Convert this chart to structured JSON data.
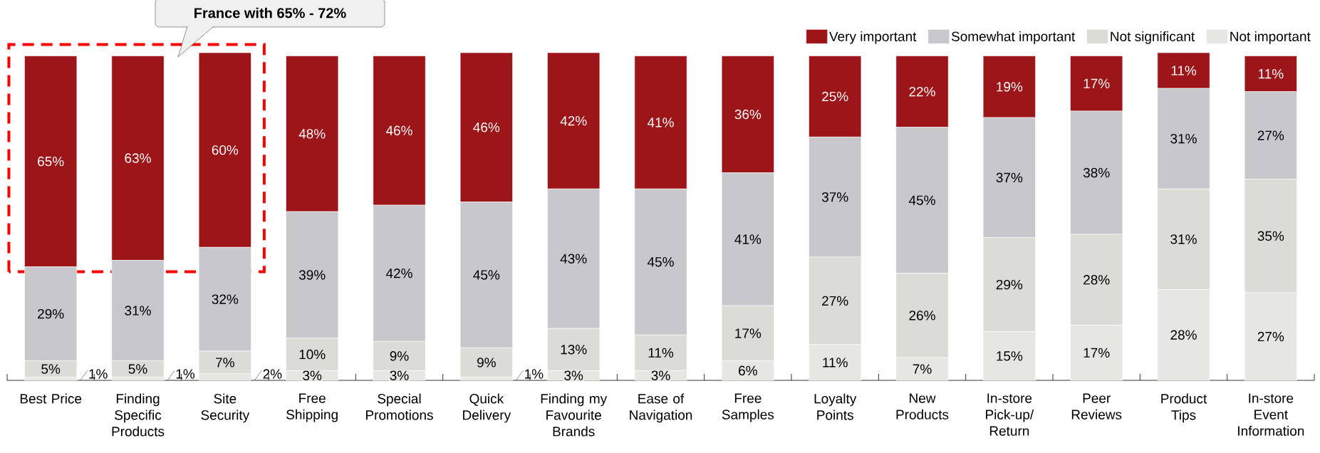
{
  "chart_data": {
    "type": "bar",
    "stacked": true,
    "legend": "top right",
    "categories": [
      "Best Price",
      "Finding Specific Products",
      "Site Security",
      "Free Shipping",
      "Special Promotions",
      "Quick Delivery",
      "Finding my Favourite Brands",
      "Ease of Navigation",
      "Free Samples",
      "Loyalty Points",
      "New Products",
      "In-store Pick-up/ Return",
      "Peer Reviews",
      "Product Tips",
      "In-store Event Information"
    ],
    "series": [
      {
        "name": "Not important",
        "color": "#e6e6e3",
        "values": [
          1,
          1,
          2,
          3,
          3,
          1,
          3,
          3,
          6,
          11,
          7,
          15,
          17,
          28,
          27
        ],
        "value_labels": [
          "1%",
          "1%",
          "2%",
          "3%",
          "3%",
          "1%",
          "3%",
          "3%",
          "6%",
          "11%",
          "7%",
          "15%",
          "17%",
          "28%",
          "27%"
        ]
      },
      {
        "name": "Not significant",
        "color": "#dcdcd6",
        "values": [
          5,
          5,
          7,
          10,
          9,
          9,
          13,
          11,
          17,
          27,
          26,
          29,
          28,
          31,
          35
        ],
        "value_labels": [
          "5%",
          "5%",
          "7%",
          "10%",
          "9%",
          "9%",
          "13%",
          "11%",
          "17%",
          "27%",
          "26%",
          "29%",
          "28%",
          "31%",
          "35%"
        ]
      },
      {
        "name": "Somewhat important",
        "color": "#c8c8cc",
        "values": [
          29,
          31,
          32,
          39,
          42,
          45,
          43,
          45,
          41,
          37,
          45,
          37,
          38,
          31,
          27
        ],
        "value_labels": [
          "29%",
          "31%",
          "32%",
          "39%",
          "42%",
          "45%",
          "43%",
          "45%",
          "41%",
          "37%",
          "45%",
          "37%",
          "38%",
          "31%",
          "27%"
        ]
      },
      {
        "name": "Very important",
        "color": "#9b1519",
        "values": [
          65,
          63,
          60,
          48,
          46,
          46,
          42,
          41,
          36,
          25,
          22,
          19,
          17,
          11,
          11
        ],
        "value_labels": [
          "65%",
          "63%",
          "60%",
          "48%",
          "46%",
          "46%",
          "42%",
          "41%",
          "36%",
          "25%",
          "22%",
          "19%",
          "17%",
          "11%",
          "11%"
        ]
      }
    ],
    "annotations": [
      "France with 65% - 72%"
    ]
  }
}
